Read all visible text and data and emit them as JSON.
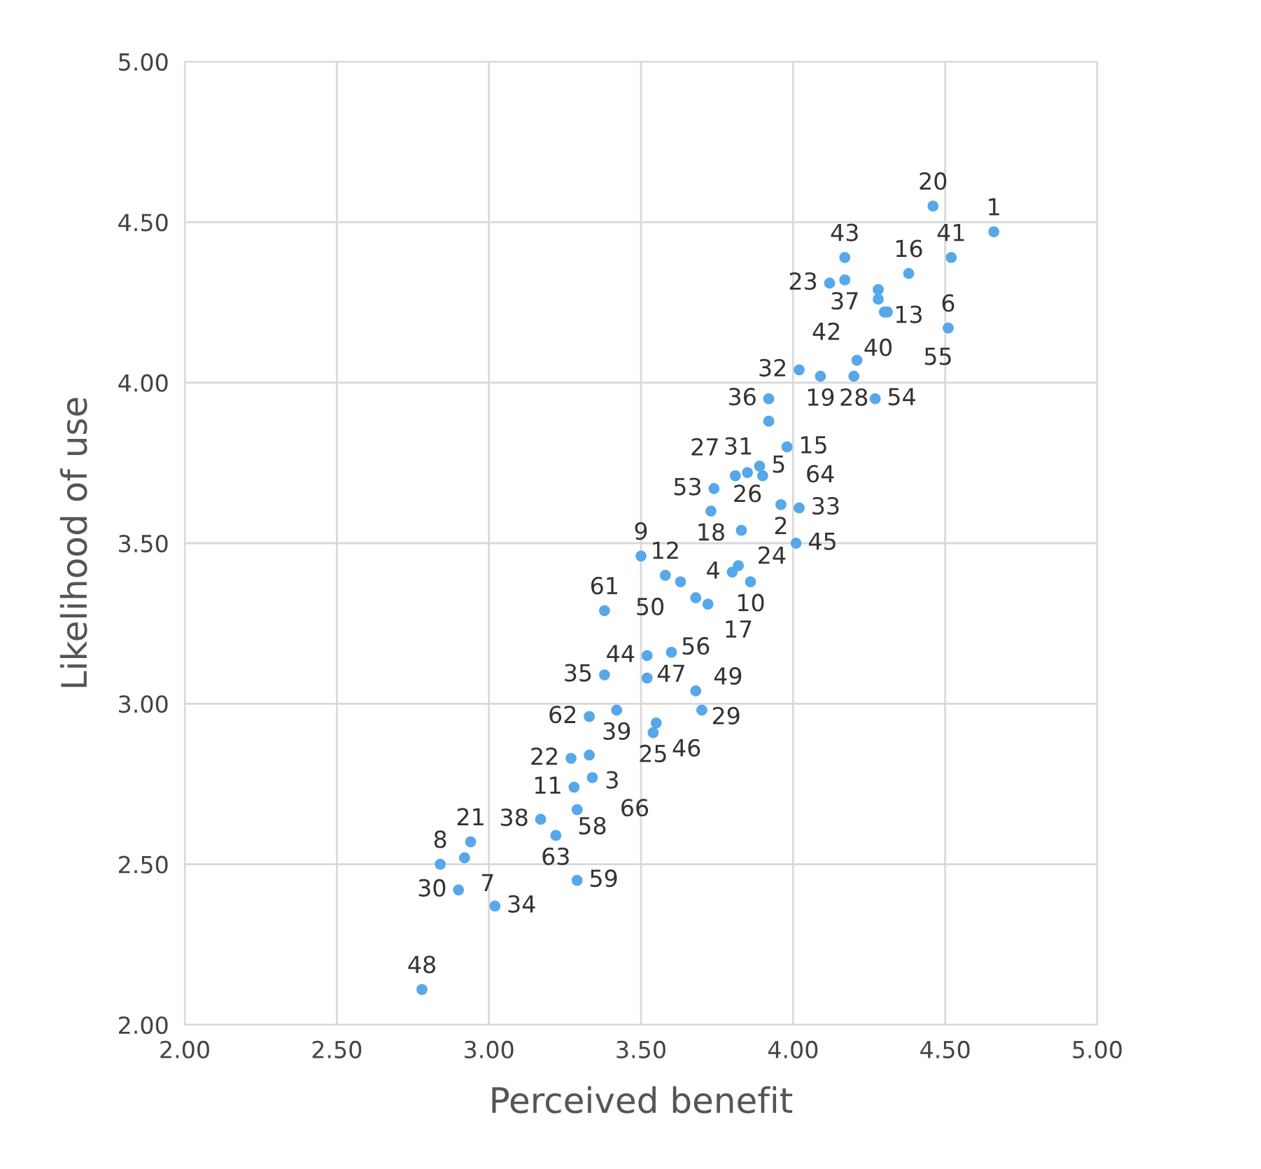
{
  "chart_data": {
    "type": "scatter",
    "xlabel": "Perceived benefit",
    "ylabel": "Likelihood of use",
    "xlim": [
      2.0,
      5.0
    ],
    "ylim": [
      2.0,
      5.0
    ],
    "xticks": [
      {
        "value": 2.0,
        "label": "2.00"
      },
      {
        "value": 2.5,
        "label": "2.50"
      },
      {
        "value": 3.0,
        "label": "3.00"
      },
      {
        "value": 3.5,
        "label": "3.50"
      },
      {
        "value": 4.0,
        "label": "4.00"
      },
      {
        "value": 4.5,
        "label": "4.50"
      },
      {
        "value": 5.0,
        "label": "5.00"
      }
    ],
    "yticks": [
      {
        "value": 2.0,
        "label": "2.00"
      },
      {
        "value": 2.5,
        "label": "2.50"
      },
      {
        "value": 3.0,
        "label": "3.00"
      },
      {
        "value": 3.5,
        "label": "3.50"
      },
      {
        "value": 4.0,
        "label": "4.00"
      },
      {
        "value": 4.5,
        "label": "4.50"
      },
      {
        "value": 5.0,
        "label": "5.00"
      }
    ],
    "grid": true,
    "marker": "circle",
    "series": [
      {
        "color": "#56a8ea",
        "x": [
          4.66,
          4.52,
          4.46,
          4.51,
          4.38,
          4.17,
          4.17,
          4.12,
          4.28,
          4.28,
          4.3,
          4.31,
          4.21,
          4.2,
          4.27,
          4.02,
          4.09,
          3.92,
          3.92,
          3.98,
          3.89,
          3.85,
          3.9,
          3.81,
          3.74,
          3.96,
          4.02,
          4.01,
          3.73,
          3.83,
          3.8,
          3.82,
          3.86,
          3.5,
          3.58,
          3.63,
          3.68,
          3.72,
          3.38,
          3.52,
          3.6,
          3.38,
          3.52,
          3.42,
          3.33,
          3.68,
          3.7,
          3.55,
          3.54,
          3.33,
          3.27,
          3.34,
          3.28,
          3.29,
          3.17,
          3.22,
          3.29,
          2.94,
          2.84,
          2.92,
          2.9,
          3.02,
          2.78
        ],
        "values": [
          4.47,
          4.39,
          4.55,
          4.17,
          4.34,
          4.39,
          4.32,
          4.31,
          4.29,
          4.26,
          4.22,
          4.22,
          4.07,
          4.02,
          3.95,
          4.04,
          4.02,
          3.95,
          3.88,
          3.8,
          3.74,
          3.72,
          3.71,
          3.71,
          3.67,
          3.62,
          3.61,
          3.5,
          3.6,
          3.54,
          3.41,
          3.43,
          3.38,
          3.46,
          3.4,
          3.38,
          3.33,
          3.31,
          3.29,
          3.15,
          3.16,
          3.09,
          3.08,
          2.98,
          2.96,
          3.04,
          2.98,
          2.94,
          2.91,
          2.84,
          2.83,
          2.77,
          2.74,
          2.67,
          2.64,
          2.59,
          2.45,
          2.57,
          2.5,
          2.52,
          2.42,
          2.37,
          2.11
        ]
      }
    ],
    "annotations": [
      {
        "text": "1",
        "x": 4.66,
        "y": 4.47
      },
      {
        "text": "41",
        "x": 4.52,
        "y": 4.39
      },
      {
        "text": "20",
        "x": 4.46,
        "y": 4.55
      },
      {
        "text": "6",
        "x": 4.51,
        "y": 4.17
      },
      {
        "text": "16",
        "x": 4.38,
        "y": 4.34
      },
      {
        "text": "43",
        "x": 4.17,
        "y": 4.39
      },
      {
        "text": "37",
        "x": 4.17,
        "y": 4.32
      },
      {
        "text": "23",
        "x": 4.12,
        "y": 4.31
      },
      {
        "text": "13",
        "x": 4.28,
        "y": 4.29
      },
      {
        "text": "40",
        "x": 4.28,
        "y": 4.26
      },
      {
        "text": "55",
        "x": 4.3,
        "y": 4.22
      },
      {
        "text": "42",
        "x": 4.21,
        "y": 4.07
      },
      {
        "text": "28",
        "x": 4.2,
        "y": 4.02
      },
      {
        "text": "54",
        "x": 4.27,
        "y": 3.95
      },
      {
        "text": "32",
        "x": 4.02,
        "y": 4.04
      },
      {
        "text": "19",
        "x": 4.09,
        "y": 4.02
      },
      {
        "text": "36",
        "x": 3.92,
        "y": 3.95
      },
      {
        "text": "31",
        "x": 3.92,
        "y": 3.88
      },
      {
        "text": "15",
        "x": 3.98,
        "y": 3.8
      },
      {
        "text": "5",
        "x": 3.89,
        "y": 3.74
      },
      {
        "text": "26",
        "x": 3.85,
        "y": 3.72
      },
      {
        "text": "64",
        "x": 3.9,
        "y": 3.71
      },
      {
        "text": "27",
        "x": 3.81,
        "y": 3.71
      },
      {
        "text": "53",
        "x": 3.74,
        "y": 3.67
      },
      {
        "text": "2",
        "x": 3.96,
        "y": 3.62
      },
      {
        "text": "33",
        "x": 4.02,
        "y": 3.61
      },
      {
        "text": "45",
        "x": 4.01,
        "y": 3.5
      },
      {
        "text": "18",
        "x": 3.73,
        "y": 3.6
      },
      {
        "text": "24",
        "x": 3.83,
        "y": 3.54
      },
      {
        "text": "4",
        "x": 3.8,
        "y": 3.41
      },
      {
        "text": "10",
        "x": 3.86,
        "y": 3.38
      },
      {
        "text": "9",
        "x": 3.5,
        "y": 3.46
      },
      {
        "text": "12",
        "x": 3.58,
        "y": 3.4
      },
      {
        "text": "50",
        "x": 3.63,
        "y": 3.38
      },
      {
        "text": "56",
        "x": 3.68,
        "y": 3.33
      },
      {
        "text": "17",
        "x": 3.72,
        "y": 3.31
      },
      {
        "text": "61",
        "x": 3.38,
        "y": 3.29
      },
      {
        "text": "44",
        "x": 3.52,
        "y": 3.15
      },
      {
        "text": "47",
        "x": 3.6,
        "y": 3.16
      },
      {
        "text": "35",
        "x": 3.38,
        "y": 3.09
      },
      {
        "text": "49",
        "x": 3.52,
        "y": 3.08
      },
      {
        "text": "39",
        "x": 3.42,
        "y": 2.98
      },
      {
        "text": "62",
        "x": 3.33,
        "y": 2.96
      },
      {
        "text": "29",
        "x": 3.68,
        "y": 3.04
      },
      {
        "text": "46",
        "x": 3.55,
        "y": 2.94
      },
      {
        "text": "25",
        "x": 3.54,
        "y": 2.91
      },
      {
        "text": "3",
        "x": 3.33,
        "y": 2.84
      },
      {
        "text": "22",
        "x": 3.27,
        "y": 2.83
      },
      {
        "text": "58",
        "x": 3.34,
        "y": 2.77
      },
      {
        "text": "11",
        "x": 3.28,
        "y": 2.74
      },
      {
        "text": "66",
        "x": 3.29,
        "y": 2.67
      },
      {
        "text": "38",
        "x": 3.17,
        "y": 2.64
      },
      {
        "text": "63",
        "x": 3.22,
        "y": 2.59
      },
      {
        "text": "59",
        "x": 3.29,
        "y": 2.45
      },
      {
        "text": "21",
        "x": 2.94,
        "y": 2.57
      },
      {
        "text": "8",
        "x": 2.84,
        "y": 2.5
      },
      {
        "text": "7",
        "x": 2.92,
        "y": 2.52
      },
      {
        "text": "30",
        "x": 2.9,
        "y": 2.42
      },
      {
        "text": "34",
        "x": 3.02,
        "y": 2.37
      },
      {
        "text": "48",
        "x": 2.78,
        "y": 2.11
      }
    ]
  }
}
